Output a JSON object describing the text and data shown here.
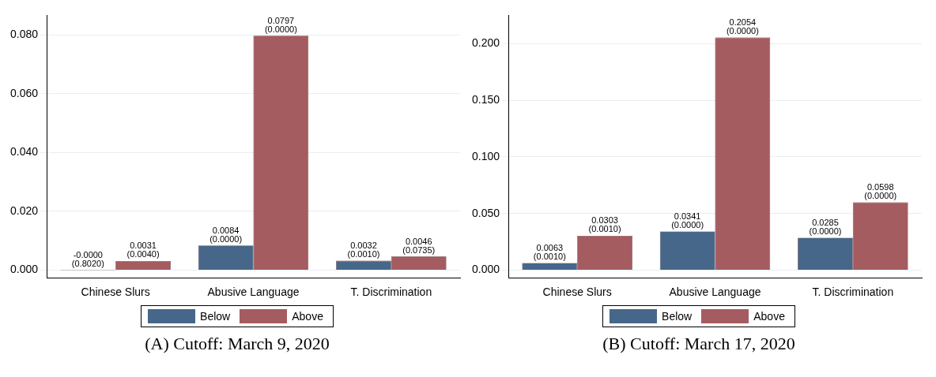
{
  "chart_data": [
    {
      "type": "bar",
      "categories": [
        "Chinese Slurs",
        "Abusive Language",
        "T. Discrimination"
      ],
      "series": [
        {
          "name": "Below",
          "color": "#46678a",
          "values": [
            -1e-05,
            0.0084,
            0.0032
          ],
          "value_labels": [
            "-0.0000\n(0.8020)",
            "0.0084\n(0.0000)",
            "0.0032\n(0.0010)"
          ]
        },
        {
          "name": "Above",
          "color": "#a45c60",
          "values": [
            0.0031,
            0.0797,
            0.0046
          ],
          "value_labels": [
            "0.0031\n(0.0040)",
            "0.0797\n(0.0000)",
            "0.0046\n(0.0735)"
          ]
        }
      ],
      "ylim": [
        -0.0026,
        0.0866
      ],
      "yticks": [
        {
          "value": 0,
          "label": "0.000"
        },
        {
          "value": 0.02,
          "label": "0.020"
        },
        {
          "value": 0.04,
          "label": "0.040"
        },
        {
          "value": 0.06,
          "label": "0.060"
        },
        {
          "value": 0.08,
          "label": "0.080"
        }
      ],
      "grid": "y",
      "legend": "bottom",
      "annotations": [
        "(A) Cutoff: March 9, 2020"
      ]
    },
    {
      "type": "bar",
      "categories": [
        "Chinese Slurs",
        "Abusive Language",
        "T. Discrimination"
      ],
      "series": [
        {
          "name": "Below",
          "color": "#46678a",
          "values": [
            0.0063,
            0.0341,
            0.0285
          ],
          "value_labels": [
            "0.0063\n(0.0010)",
            "0.0341\n(0.0000)",
            "0.0285\n(0.0000)"
          ]
        },
        {
          "name": "Above",
          "color": "#a45c60",
          "values": [
            0.0303,
            0.2054,
            0.0598
          ],
          "value_labels": [
            "0.0303\n(0.0010)",
            "0.2054\n(0.0000)",
            "0.0598\n(0.0000)"
          ]
        }
      ],
      "ylim": [
        -0.0068,
        0.225
      ],
      "yticks": [
        {
          "value": 0,
          "label": "0.000"
        },
        {
          "value": 0.05,
          "label": "0.050"
        },
        {
          "value": 0.1,
          "label": "0.100"
        },
        {
          "value": 0.15,
          "label": "0.150"
        },
        {
          "value": 0.2,
          "label": "0.200"
        }
      ],
      "grid": "y",
      "legend": "bottom",
      "annotations": [
        "(B) Cutoff: March 17, 2020"
      ]
    }
  ]
}
